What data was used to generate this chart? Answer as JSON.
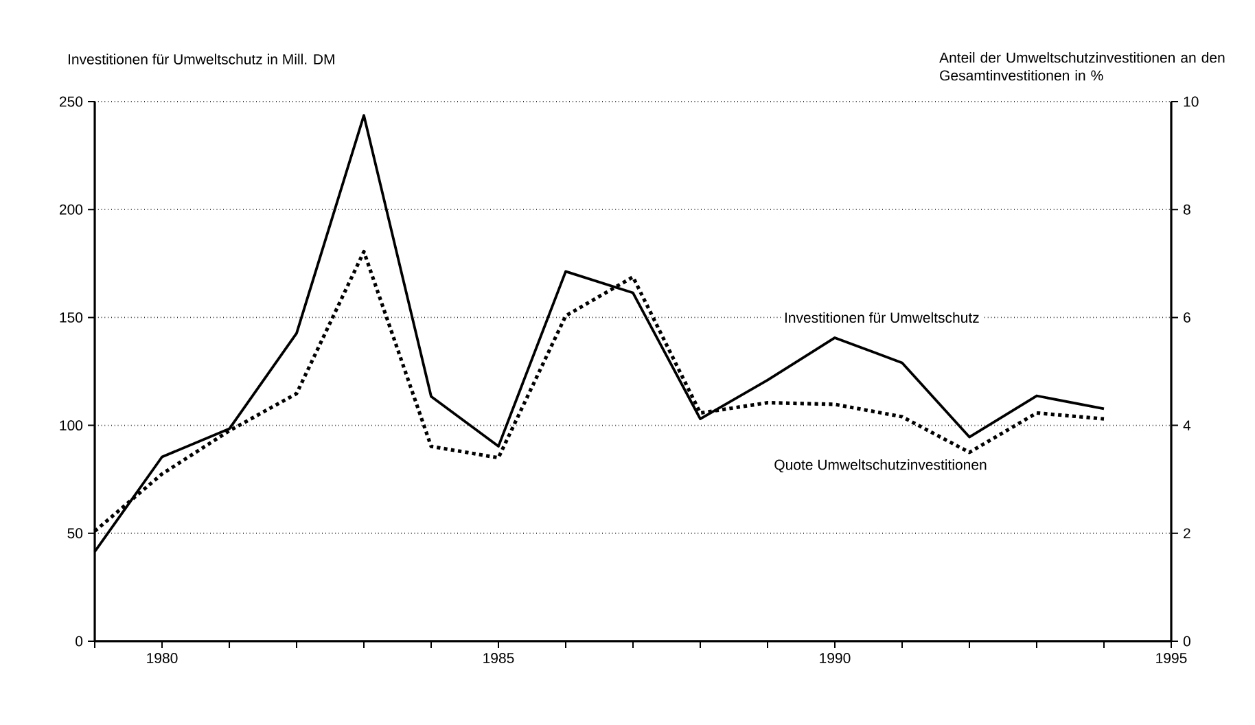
{
  "chart_data": {
    "type": "line",
    "ylabel": "Investitionen für Umweltschutz in Mill. DM",
    "y2label": "Anteil der Umweltschutzinvestitionen an den Gesamtinvestitionen in %",
    "x": [
      1979,
      1980,
      1981,
      1982,
      1983,
      1984,
      1985,
      1986,
      1987,
      1988,
      1989,
      1990,
      1991,
      1992,
      1993,
      1994
    ],
    "series": [
      {
        "name": "Investitionen für Umweltschutz",
        "color": "#000000",
        "line_style": "solid",
        "values": [
          41.5,
          85.4,
          98.4,
          142.7,
          243.6,
          113.4,
          90.3,
          171.3,
          161.4,
          103,
          121,
          140.6,
          129,
          94.6,
          113.7,
          107.7
        ]
      },
      {
        "name": "Quote Umweltschutzinvestitionen",
        "color": "#000000",
        "line_style": "dotted",
        "axis": "y2",
        "values": [
          2.04,
          3.1,
          3.9,
          4.59,
          7.22,
          3.61,
          3.4,
          6.03,
          6.75,
          4.23,
          4.42,
          4.39,
          4.16,
          3.5,
          4.23,
          4.12
        ]
      }
    ],
    "xlim": [
      1979,
      1995
    ],
    "xticks": [
      {
        "value": 1979,
        "label": null
      },
      1980,
      {
        "value": 1981,
        "label": null
      },
      {
        "value": 1982,
        "label": null
      },
      {
        "value": 1983,
        "label": null
      },
      {
        "value": 1984,
        "label": null
      },
      1985,
      {
        "value": 1986,
        "label": null
      },
      {
        "value": 1987,
        "label": null
      },
      {
        "value": 1988,
        "label": null
      },
      {
        "value": 1989,
        "label": null
      },
      1990,
      {
        "value": 1991,
        "label": null
      },
      {
        "value": 1992,
        "label": null
      },
      {
        "value": 1993,
        "label": null
      },
      {
        "value": 1994,
        "label": null
      },
      1995
    ],
    "ylim": [
      0,
      250
    ],
    "yticks": [
      0,
      50,
      100,
      150,
      200,
      250
    ],
    "y2lim": [
      0,
      10
    ],
    "y2ticks": [
      0,
      2,
      4,
      6,
      8,
      10
    ],
    "grid": "y",
    "legend": false,
    "marker": "none"
  }
}
